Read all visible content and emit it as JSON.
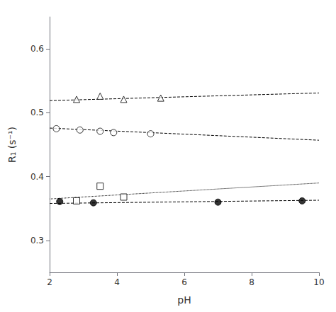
{
  "chart_data": {
    "type": "scatter",
    "xlabel": "pH",
    "ylabel": "R₁ (s⁻¹)",
    "xlim": [
      2,
      10
    ],
    "ylim": [
      0.25,
      0.65
    ],
    "xticks": [
      2,
      4,
      6,
      8,
      10
    ],
    "yticks": [
      0.3,
      0.4,
      0.5,
      0.6
    ],
    "grid": false,
    "color": "#000000",
    "series": [
      {
        "type": "line",
        "line_style": "dashed",
        "x": [
          2.0,
          10.0
        ],
        "values": [
          0.519,
          0.531
        ]
      },
      {
        "type": "scatter",
        "marker": "triangle-open",
        "x": [
          2.8,
          3.5,
          4.2,
          5.3
        ],
        "values": [
          0.521,
          0.526,
          0.521,
          0.523
        ]
      },
      {
        "type": "line",
        "line_style": "dashed",
        "x": [
          2.0,
          10.0
        ],
        "values": [
          0.476,
          0.457
        ]
      },
      {
        "type": "scatter",
        "marker": "circle-open",
        "x": [
          2.2,
          2.9,
          3.5,
          3.9,
          5.0
        ],
        "values": [
          0.475,
          0.473,
          0.471,
          0.469,
          0.467
        ]
      },
      {
        "type": "line",
        "line_style": "dotted",
        "x": [
          2.0,
          10.0
        ],
        "values": [
          0.365,
          0.39
        ]
      },
      {
        "type": "scatter",
        "marker": "square-open",
        "x": [
          2.8,
          3.5,
          4.2
        ],
        "values": [
          0.362,
          0.385,
          0.368
        ]
      },
      {
        "type": "line",
        "line_style": "dashed",
        "x": [
          2.0,
          10.0
        ],
        "values": [
          0.358,
          0.363
        ]
      },
      {
        "type": "scatter",
        "marker": "circle",
        "x": [
          2.3,
          3.3,
          7.0,
          9.5
        ],
        "values": [
          0.361,
          0.359,
          0.36,
          0.362
        ]
      }
    ]
  }
}
